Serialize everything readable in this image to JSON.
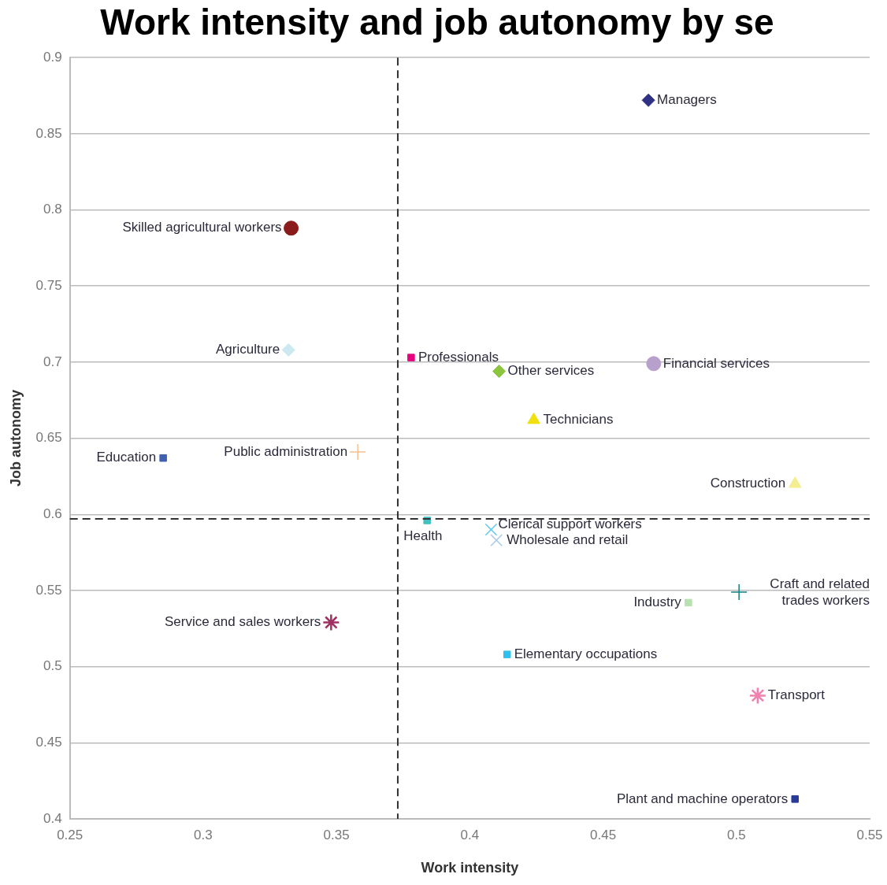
{
  "chart_data": {
    "type": "scatter",
    "title": "Work intensity and job autonomy by se",
    "xlabel": "Work intensity",
    "ylabel": "Job autonomy",
    "xlim": [
      0.25,
      0.55
    ],
    "xticks": [
      0.25,
      0.3,
      0.35,
      0.4,
      0.45,
      0.5,
      0.55
    ],
    "ylim": [
      0.4,
      0.9
    ],
    "yticks": [
      0.4,
      0.45,
      0.5,
      0.55,
      0.6,
      0.65,
      0.7,
      0.75,
      0.8,
      0.85,
      0.9
    ],
    "grid": "y",
    "legend": false,
    "ref_lines": [
      {
        "axis": "x",
        "value": 0.373,
        "color": "#333333",
        "line_style": "dashed"
      },
      {
        "axis": "y",
        "value": 0.597,
        "color": "#333333",
        "line_style": "dashed"
      }
    ],
    "series": [
      {
        "name": "Managers",
        "color": "#2e3184",
        "marker": "diamond",
        "x": [
          0.467
        ],
        "values": [
          0.872
        ]
      },
      {
        "name": "Skilled agricultural workers",
        "color": "#8b1a1a",
        "marker": "circle",
        "x": [
          0.333
        ],
        "values": [
          0.788
        ]
      },
      {
        "name": "Agriculture",
        "color": "#cce8f0",
        "marker": "diamond",
        "x": [
          0.332
        ],
        "values": [
          0.708
        ]
      },
      {
        "name": "Professionals",
        "color": "#e6007e",
        "marker": "square",
        "x": [
          0.378
        ],
        "values": [
          0.703
        ]
      },
      {
        "name": "Other services",
        "color": "#8cc63f",
        "marker": "diamond",
        "x": [
          0.411
        ],
        "values": [
          0.694
        ]
      },
      {
        "name": "Financial services",
        "color": "#b8a0cc",
        "marker": "circle",
        "x": [
          0.469
        ],
        "values": [
          0.699
        ]
      },
      {
        "name": "Technicians",
        "color": "#f0e010",
        "marker": "triangle",
        "x": [
          0.424
        ],
        "values": [
          0.662
        ]
      },
      {
        "name": "Education",
        "color": "#4060b0",
        "marker": "square",
        "x": [
          0.285
        ],
        "values": [
          0.637
        ]
      },
      {
        "name": "Public administration",
        "color": "#f8c090",
        "marker": "plus",
        "x": [
          0.358
        ],
        "values": [
          0.641
        ]
      },
      {
        "name": "Construction",
        "color": "#f5ee90",
        "marker": "triangle",
        "x": [
          0.522
        ],
        "values": [
          0.62
        ]
      },
      {
        "name": "Health",
        "color": "#40c0c0",
        "marker": "square",
        "x": [
          0.384
        ],
        "values": [
          0.596
        ]
      },
      {
        "name": "Clerical support workers",
        "color": "#60c8ee",
        "marker": "cross",
        "x": [
          0.408
        ],
        "values": [
          0.59
        ]
      },
      {
        "name": "Wholesale and retail",
        "color": "#a8c8e8",
        "marker": "cross",
        "x": [
          0.41
        ],
        "values": [
          0.583
        ]
      },
      {
        "name": "Craft and related trades workers",
        "color": "#108080",
        "marker": "plus",
        "x": [
          0.501
        ],
        "values": [
          0.549
        ]
      },
      {
        "name": "Industry",
        "color": "#b8e0b0",
        "marker": "square",
        "x": [
          0.482
        ],
        "values": [
          0.542
        ]
      },
      {
        "name": "Service and sales workers",
        "color": "#a03060",
        "x": [
          0.348
        ],
        "values": [
          0.529
        ]
      },
      {
        "name": "Elementary occupations",
        "color": "#30c0ee",
        "marker": "square",
        "x": [
          0.414
        ],
        "values": [
          0.508
        ]
      },
      {
        "name": "Transport",
        "color": "#f080b0",
        "x": [
          0.508
        ],
        "values": [
          0.481
        ]
      },
      {
        "name": "Plant and machine operators",
        "color": "#2a3a9a",
        "marker": "square",
        "x": [
          0.522
        ],
        "values": [
          0.413
        ]
      }
    ]
  }
}
